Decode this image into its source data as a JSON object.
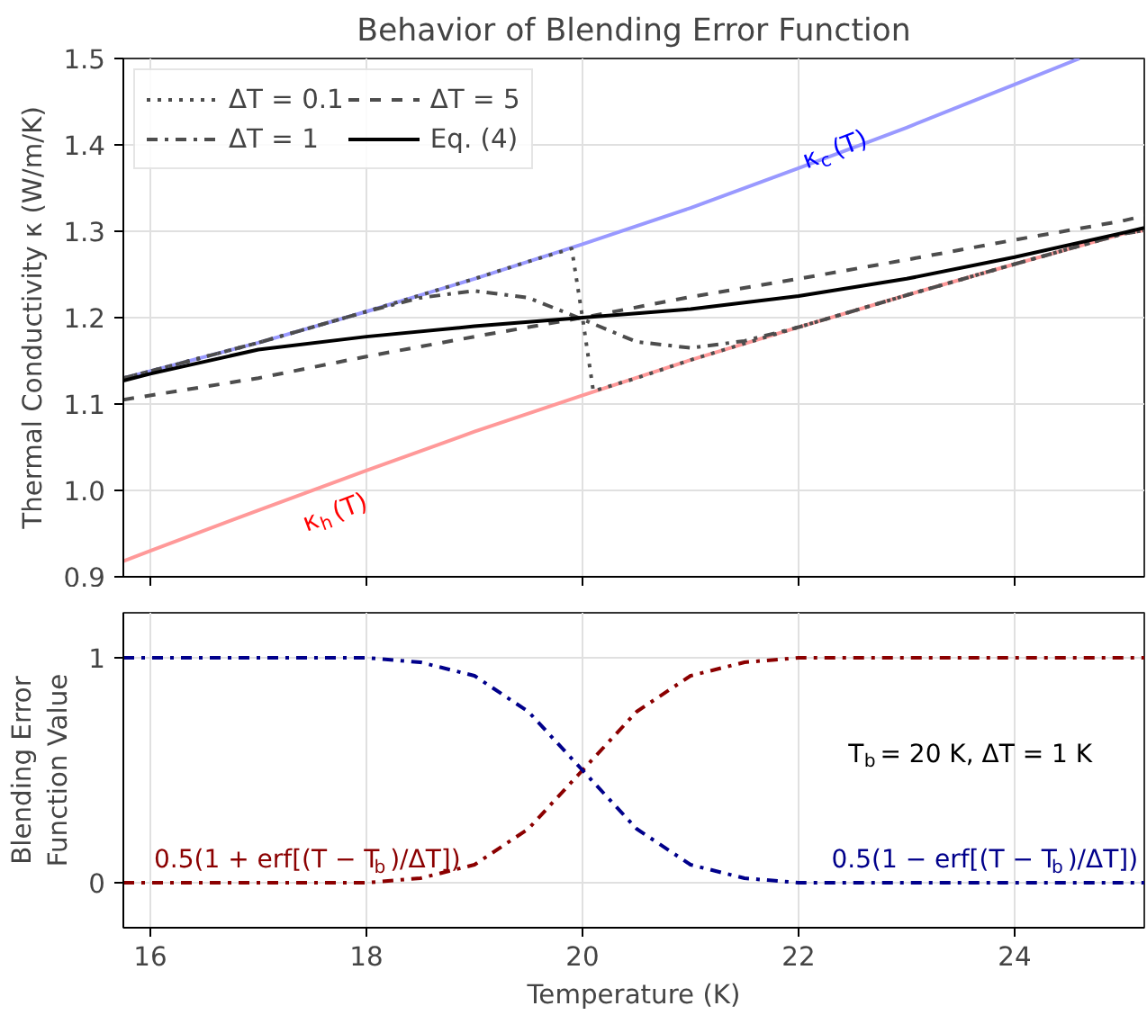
{
  "chart_data": [
    {
      "type": "line",
      "title": "Behavior of Blending Error Function",
      "ylabel": "Thermal Conductivity κ (W/m/K)",
      "xlim": [
        15.75,
        25.2
      ],
      "xticks": [
        16,
        18,
        20,
        22,
        24
      ],
      "ylim": [
        0.9,
        1.5
      ],
      "yticks": [
        0.9,
        {
          "value": 1.0,
          "label": "1.0"
        },
        1.1,
        1.2,
        1.3,
        1.4,
        1.5
      ],
      "tick_labels": "y",
      "grid": true,
      "legend": "top left",
      "series": [
        {
          "color": "#9999ff",
          "line_style": "solid",
          "x": [
            15.75,
            16,
            17,
            18,
            19,
            20,
            21,
            22,
            23,
            24,
            24.6
          ],
          "values": [
            1.13,
            1.138,
            1.171,
            1.207,
            1.245,
            1.285,
            1.327,
            1.373,
            1.42,
            1.47,
            1.5
          ]
        },
        {
          "color": "#ff9999",
          "line_style": "solid",
          "x": [
            15.75,
            16,
            17,
            18,
            19,
            20,
            21,
            22,
            23,
            24,
            25,
            25.2
          ],
          "values": [
            0.918,
            0.93,
            0.977,
            1.023,
            1.068,
            1.11,
            1.151,
            1.189,
            1.226,
            1.262,
            1.297,
            1.301
          ]
        },
        {
          "name": "ΔT = 0.1",
          "color": "#4d4d4d",
          "line_style": "dotted",
          "x": [
            15.75,
            16,
            17,
            18,
            19,
            19.5,
            19.9,
            20,
            20.1,
            20.5,
            21,
            22,
            23,
            24,
            25,
            25.2
          ],
          "values": [
            1.13,
            1.138,
            1.171,
            1.207,
            1.245,
            1.265,
            1.28,
            1.2,
            1.115,
            1.13,
            1.151,
            1.189,
            1.226,
            1.262,
            1.297,
            1.301
          ]
        },
        {
          "name": "ΔT = 1",
          "color": "#4d4d4d",
          "line_style": "dashdot",
          "x": [
            15.75,
            16,
            17,
            18,
            18.5,
            19,
            19.5,
            20,
            20.5,
            21,
            21.5,
            22,
            23,
            24,
            25,
            25.2
          ],
          "values": [
            1.13,
            1.138,
            1.171,
            1.207,
            1.223,
            1.231,
            1.223,
            1.198,
            1.172,
            1.165,
            1.173,
            1.189,
            1.226,
            1.262,
            1.297,
            1.301
          ]
        },
        {
          "name": "ΔT = 5",
          "color": "#4d4d4d",
          "line_style": "dashed",
          "x": [
            15.75,
            17,
            18,
            19,
            20,
            21,
            22,
            23,
            24,
            25,
            25.2
          ],
          "values": [
            1.105,
            1.13,
            1.155,
            1.178,
            1.2,
            1.224,
            1.245,
            1.267,
            1.29,
            1.312,
            1.318
          ]
        },
        {
          "name": "Eq. (4)",
          "color": "#000000",
          "line_style": "solid",
          "x": [
            15.75,
            16,
            17,
            18,
            19,
            20,
            21,
            22,
            23,
            24,
            25,
            25.2
          ],
          "values": [
            1.127,
            1.135,
            1.163,
            1.178,
            1.19,
            1.2,
            1.21,
            1.225,
            1.245,
            1.27,
            1.298,
            1.304
          ]
        }
      ],
      "annotations": [
        {
          "text": "κ$_{c}$(T)",
          "x": 22.05,
          "y": 1.38
        },
        "κ$_{h}$(T)"
      ]
    },
    {
      "type": "line",
      "xlabel": "Temperature (K)",
      "ylabel": "Blending Error\nFunction Value",
      "xlim": [
        15.75,
        25.2
      ],
      "xticks": [
        16,
        18,
        20,
        22,
        24
      ],
      "ylim": [
        -0.2,
        1.2
      ],
      "yticks": [
        0,
        1
      ],
      "grid": true,
      "series": [
        {
          "color": "#8b0000",
          "line_style": "dashdot",
          "x": [
            15.75,
            16,
            17,
            18,
            18.5,
            19,
            19.5,
            20,
            20.5,
            21,
            21.5,
            22,
            23,
            24,
            25,
            25.2
          ],
          "values": [
            0,
            0,
            0,
            0,
            0.02,
            0.08,
            0.24,
            0.5,
            0.76,
            0.92,
            0.98,
            1,
            1,
            1,
            1,
            1
          ]
        },
        {
          "color": "#00008b",
          "line_style": "dashdot",
          "x": [
            15.75,
            16,
            17,
            18,
            18.5,
            19,
            19.5,
            20,
            20.5,
            21,
            21.5,
            22,
            23,
            24,
            25,
            25.2
          ],
          "values": [
            1,
            1,
            1,
            1,
            0.98,
            0.92,
            0.76,
            0.5,
            0.24,
            0.08,
            0.02,
            0,
            0,
            0,
            0,
            0
          ]
        }
      ],
      "annotations": [
        "0.5(1 + erf[(T − T$_{b}$)/ΔT])",
        "0.5(1 − erf[(T − T$_{b}$)/ΔT])",
        "T$_{b}$ = 20 K, ΔT = 1 K"
      ]
    }
  ]
}
